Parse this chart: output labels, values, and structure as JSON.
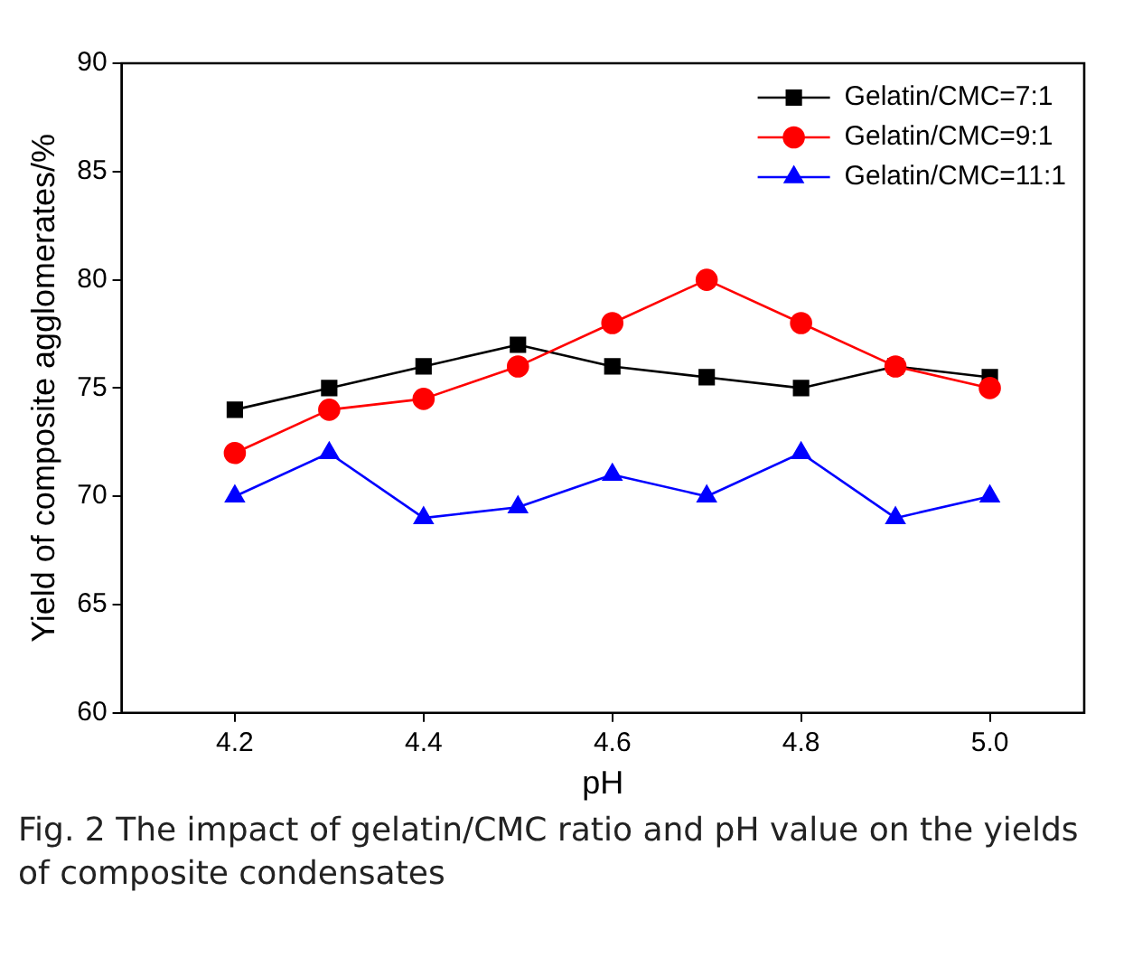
{
  "chart_data": {
    "type": "line",
    "xlabel": "pH",
    "ylabel": "Yield of composite agglomerates/%",
    "x": [
      4.2,
      4.3,
      4.4,
      4.5,
      4.6,
      4.7,
      4.8,
      4.9,
      5.0
    ],
    "series": [
      {
        "name": "Gelatin/CMC=7:1",
        "color": "#000000",
        "marker": "square",
        "values": [
          74,
          75,
          76,
          77,
          76,
          75.5,
          75,
          76,
          75.5
        ]
      },
      {
        "name": "Gelatin/CMC=9:1",
        "color": "#ff0000",
        "marker": "circle",
        "values": [
          72,
          74,
          74.5,
          76,
          78,
          80,
          78,
          76,
          75
        ]
      },
      {
        "name": "Gelatin/CMC=11:1",
        "color": "#0000ff",
        "marker": "triangle",
        "values": [
          70,
          72,
          69,
          69.5,
          71,
          70,
          72,
          69,
          70
        ]
      }
    ],
    "xlim": [
      4.08,
      5.1
    ],
    "xticks": [
      {
        "value": 4.2,
        "label": "4.2"
      },
      {
        "value": 4.4,
        "label": "4.4"
      },
      {
        "value": 4.6,
        "label": "4.6"
      },
      {
        "value": 4.8,
        "label": "4.8"
      },
      {
        "value": 5.0,
        "label": "5.0"
      }
    ],
    "ylim": [
      60,
      90
    ],
    "yticks": [
      60,
      65,
      70,
      75,
      80,
      85,
      90
    ],
    "grid": false,
    "legend": "top right",
    "line_style": "solid",
    "annotations": [
      "Fig. 2 The impact of gelatin/CMC ratio and pH value on the yields of composite condensates"
    ]
  }
}
